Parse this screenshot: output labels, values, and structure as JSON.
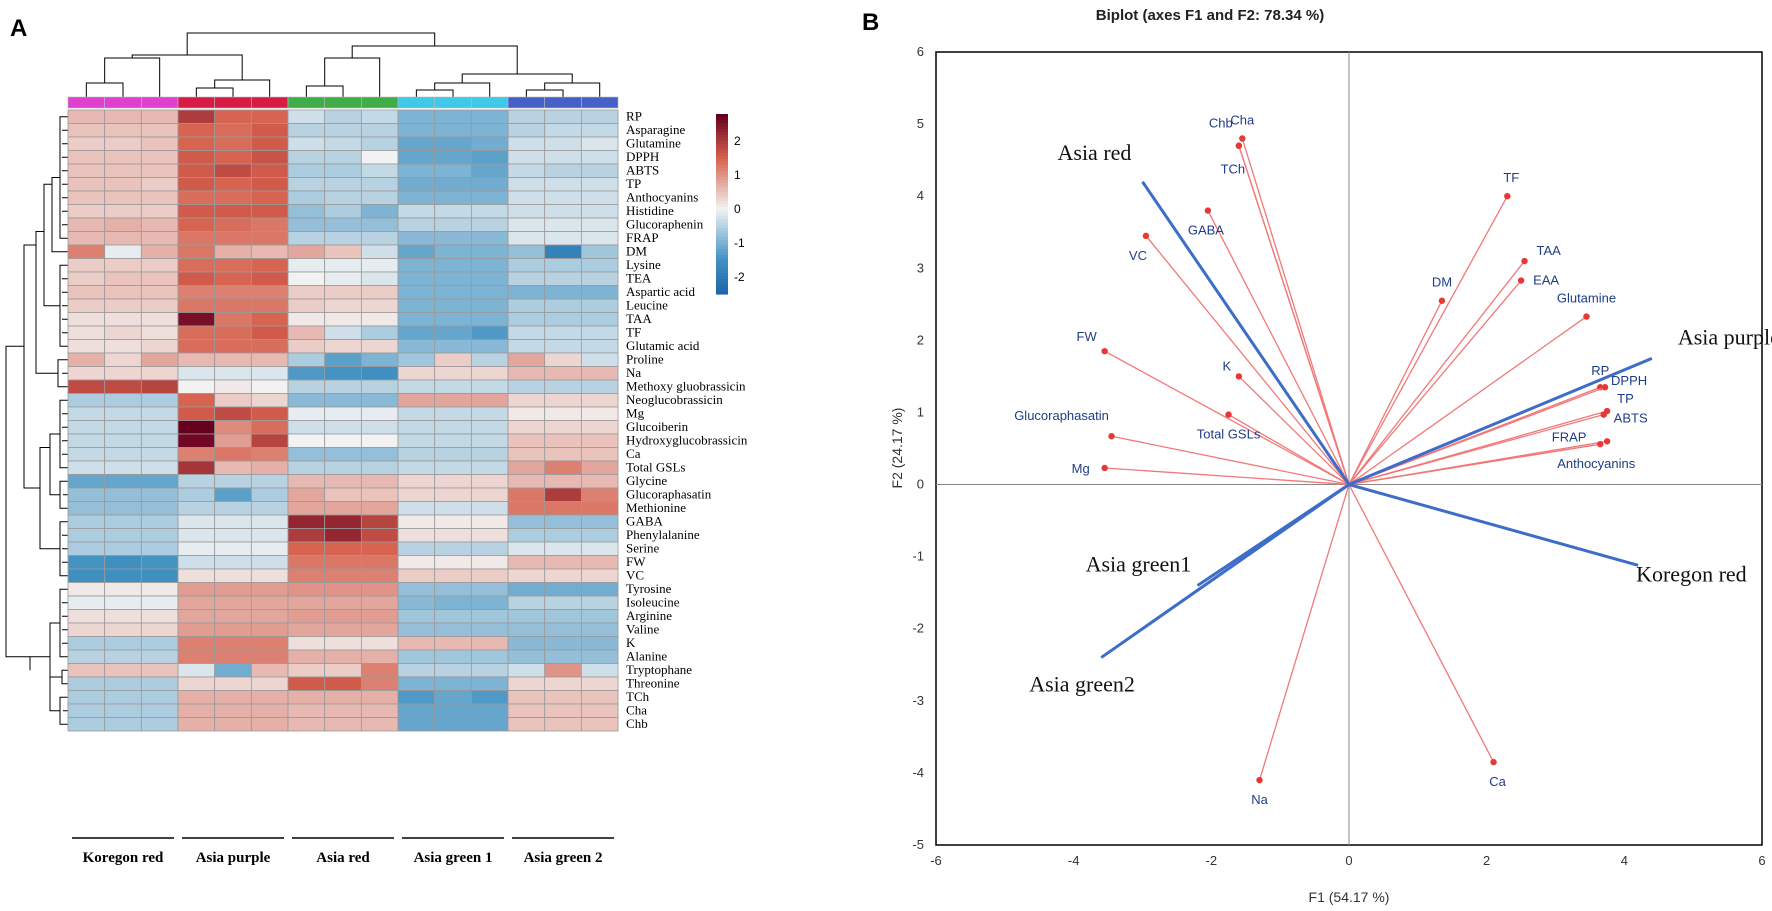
{
  "panelA": {
    "letter": "A",
    "rows": [
      "RP",
      "Asparagine",
      "Glutamine",
      "DPPH",
      "ABTS",
      "TP",
      "Anthocyanins",
      "Histidine",
      "Glucoraphenin",
      "FRAP",
      "DM",
      "Lysine",
      "TEA",
      "Aspartic acid",
      "Leucine",
      "TAA",
      "TF",
      "Glutamic acid",
      "Proline",
      "Na",
      "Methoxy gluobrassicin",
      "Neoglucobrassicin",
      "Mg",
      "Glucoiberin",
      "Hydroxyglucobrassicin",
      "Ca",
      "Total GSLs",
      "Glycine",
      "Glucoraphasatin",
      "Methionine",
      "GABA",
      "Phenylalanine",
      "Serine",
      "FW",
      "VC",
      "Tyrosine",
      "Isoleucine",
      "Arginine",
      "Valine",
      "K",
      "Alanine",
      "Tryptophane",
      "Threonine",
      "TCh",
      "Cha",
      "Chb"
    ],
    "groups": [
      "Koregon red",
      "Asia purple",
      "Asia red",
      "Asia green 1",
      "Asia green 2"
    ],
    "group_colors": [
      "#e040d0",
      "#d81b46",
      "#3fae49",
      "#3fc8e8",
      "#4560c8"
    ],
    "colorbar": {
      "ticks": [
        "2",
        "1",
        "0",
        "-1",
        "-2"
      ],
      "low": "#2166ac",
      "mid": "#f2f2f2",
      "high": "#67001f"
    },
    "values": [
      [
        0.6,
        0.6,
        0.6,
        2.0,
        1.5,
        1.5,
        -0.3,
        -0.5,
        -0.4,
        -1.0,
        -1.0,
        -1.0,
        -0.5,
        -0.5,
        -0.5
      ],
      [
        0.5,
        0.5,
        0.5,
        1.5,
        1.4,
        1.6,
        -0.5,
        -0.5,
        -0.5,
        -1.0,
        -1.0,
        -1.0,
        -0.5,
        -0.4,
        -0.4
      ],
      [
        0.4,
        0.4,
        0.5,
        1.5,
        1.4,
        1.6,
        -0.3,
        -0.4,
        -0.5,
        -1.2,
        -1.2,
        -1.1,
        -0.3,
        -0.3,
        -0.2
      ],
      [
        0.5,
        0.5,
        0.5,
        1.6,
        1.5,
        1.7,
        -0.5,
        -0.5,
        0.0,
        -1.2,
        -1.2,
        -1.3,
        -0.3,
        -0.3,
        -0.3
      ],
      [
        0.5,
        0.5,
        0.5,
        1.6,
        1.8,
        1.6,
        -0.6,
        -0.6,
        -0.4,
        -1.0,
        -1.0,
        -1.2,
        -0.4,
        -0.5,
        -0.5
      ],
      [
        0.5,
        0.5,
        0.4,
        1.6,
        1.5,
        1.6,
        -0.5,
        -0.5,
        -0.5,
        -1.1,
        -1.1,
        -1.1,
        -0.3,
        -0.3,
        -0.3
      ],
      [
        0.5,
        0.5,
        0.5,
        1.4,
        1.4,
        1.5,
        -0.6,
        -0.5,
        -0.5,
        -1.0,
        -1.0,
        -1.0,
        -0.3,
        -0.3,
        -0.3
      ],
      [
        0.4,
        0.4,
        0.4,
        1.6,
        1.6,
        1.6,
        -0.8,
        -0.6,
        -1.0,
        -0.4,
        -0.4,
        -0.4,
        -0.3,
        -0.3,
        -0.3
      ],
      [
        0.6,
        0.7,
        0.6,
        1.5,
        1.4,
        1.3,
        -0.8,
        -0.8,
        -0.8,
        -0.5,
        -0.5,
        -0.5,
        -0.2,
        -0.2,
        -0.2
      ],
      [
        0.6,
        0.6,
        0.6,
        1.3,
        1.3,
        1.3,
        -0.5,
        -0.5,
        -0.5,
        -0.9,
        -0.9,
        -0.9,
        -0.2,
        -0.2,
        -0.2
      ],
      [
        1.2,
        -0.1,
        0.7,
        1.3,
        0.7,
        0.6,
        0.8,
        0.5,
        -0.3,
        -1.2,
        -1.0,
        -1.0,
        -0.8,
        -1.9,
        -0.7
      ],
      [
        0.4,
        0.4,
        0.4,
        1.4,
        1.4,
        1.5,
        -0.1,
        -0.1,
        -0.1,
        -1.0,
        -1.0,
        -1.0,
        -0.6,
        -0.6,
        -0.6
      ],
      [
        0.4,
        0.5,
        0.5,
        1.6,
        1.5,
        1.6,
        0.0,
        -0.1,
        -0.2,
        -1.0,
        -1.0,
        -1.0,
        -0.5,
        -0.5,
        -0.5
      ],
      [
        0.5,
        0.5,
        0.5,
        1.2,
        1.2,
        1.2,
        0.4,
        0.4,
        0.4,
        -1.0,
        -1.0,
        -1.0,
        -1.0,
        -1.0,
        -1.0
      ],
      [
        0.4,
        0.4,
        0.4,
        1.3,
        1.3,
        1.3,
        0.4,
        0.3,
        0.3,
        -1.0,
        -1.0,
        -1.0,
        -0.6,
        -0.6,
        -0.6
      ],
      [
        0.2,
        0.2,
        0.2,
        2.6,
        1.3,
        1.5,
        0.1,
        0.1,
        0.1,
        -1.0,
        -1.0,
        -1.0,
        -0.6,
        -0.6,
        -0.6
      ],
      [
        0.2,
        0.3,
        0.2,
        1.4,
        1.4,
        1.6,
        0.6,
        -0.3,
        -0.6,
        -1.2,
        -1.2,
        -1.4,
        -0.4,
        -0.4,
        -0.4
      ],
      [
        0.2,
        0.2,
        0.3,
        1.4,
        1.4,
        1.4,
        0.4,
        0.3,
        0.3,
        -0.9,
        -0.9,
        -0.9,
        -0.4,
        -0.4,
        -0.4
      ],
      [
        0.7,
        0.3,
        0.8,
        0.6,
        0.6,
        0.6,
        -0.6,
        -1.3,
        -1.0,
        -0.7,
        0.4,
        -0.5,
        0.8,
        0.3,
        -0.3
      ],
      [
        0.3,
        0.3,
        0.3,
        -0.2,
        -0.2,
        -0.2,
        -1.4,
        -1.5,
        -1.6,
        0.3,
        0.3,
        0.3,
        0.6,
        0.6,
        0.6
      ],
      [
        1.8,
        1.8,
        1.9,
        0.0,
        0.1,
        0.0,
        -0.5,
        -0.5,
        -0.5,
        -0.4,
        -0.4,
        -0.4,
        -0.5,
        -0.5,
        -0.5
      ],
      [
        -0.6,
        -0.6,
        -0.6,
        1.5,
        0.4,
        0.3,
        -0.9,
        -0.9,
        -0.9,
        0.8,
        0.8,
        0.8,
        0.3,
        0.3,
        0.3
      ],
      [
        -0.4,
        -0.4,
        -0.4,
        1.6,
        1.8,
        1.6,
        -0.1,
        -0.1,
        -0.1,
        -0.4,
        -0.4,
        -0.4,
        0.1,
        0.1,
        0.1
      ],
      [
        -0.4,
        -0.4,
        -0.4,
        2.9,
        1.1,
        1.4,
        -0.3,
        -0.3,
        -0.3,
        -0.4,
        -0.4,
        -0.4,
        0.3,
        0.3,
        0.3
      ],
      [
        -0.4,
        -0.4,
        -0.4,
        2.7,
        0.9,
        1.9,
        0.0,
        0.0,
        0.0,
        -0.4,
        -0.4,
        -0.4,
        0.5,
        0.5,
        0.5
      ],
      [
        -0.4,
        -0.4,
        -0.4,
        1.2,
        1.3,
        1.2,
        -0.8,
        -0.8,
        -0.8,
        -0.5,
        -0.5,
        -0.5,
        0.5,
        0.5,
        0.5
      ],
      [
        -0.3,
        -0.3,
        -0.3,
        2.1,
        0.6,
        0.7,
        -0.5,
        -0.5,
        -0.5,
        -0.4,
        -0.4,
        -0.4,
        0.8,
        1.2,
        0.8
      ],
      [
        -1.2,
        -1.2,
        -1.2,
        -0.5,
        -0.5,
        -0.5,
        0.6,
        0.6,
        0.6,
        0.3,
        0.3,
        0.3,
        0.6,
        0.6,
        0.6
      ],
      [
        -0.8,
        -0.8,
        -0.8,
        -0.6,
        -1.3,
        -0.6,
        0.8,
        0.5,
        0.5,
        0.3,
        0.3,
        0.3,
        1.3,
        2.0,
        1.2
      ],
      [
        -0.8,
        -0.8,
        -0.8,
        -0.5,
        -0.5,
        -0.5,
        0.8,
        0.8,
        0.8,
        -0.3,
        -0.3,
        -0.3,
        1.3,
        1.3,
        1.3
      ],
      [
        -0.6,
        -0.6,
        -0.6,
        -0.2,
        -0.2,
        -0.2,
        2.3,
        2.3,
        1.9,
        0.1,
        0.1,
        0.1,
        -0.8,
        -0.8,
        -0.8
      ],
      [
        -0.6,
        -0.6,
        -0.6,
        -0.2,
        -0.2,
        -0.2,
        2.0,
        2.3,
        1.8,
        0.2,
        0.2,
        0.2,
        -0.6,
        -0.6,
        -0.6
      ],
      [
        -0.6,
        -0.6,
        -0.6,
        -0.1,
        -0.1,
        -0.1,
        1.5,
        1.5,
        1.5,
        -0.5,
        -0.5,
        -0.5,
        -0.2,
        -0.2,
        -0.2
      ],
      [
        -1.5,
        -1.6,
        -1.5,
        -0.3,
        -0.3,
        -0.3,
        1.3,
        1.3,
        1.3,
        0.1,
        0.1,
        0.1,
        0.6,
        0.6,
        0.6
      ],
      [
        -1.6,
        -1.6,
        -1.6,
        0.2,
        0.2,
        0.2,
        1.2,
        1.2,
        1.2,
        0.4,
        0.4,
        0.4,
        0.3,
        0.3,
        0.3
      ],
      [
        0.1,
        0.1,
        0.1,
        0.9,
        0.9,
        0.9,
        1.0,
        1.0,
        1.0,
        -0.8,
        -0.8,
        -0.8,
        -1.1,
        -1.1,
        -1.1
      ],
      [
        -0.1,
        -0.1,
        -0.1,
        0.8,
        0.8,
        0.8,
        0.8,
        0.8,
        0.8,
        -0.9,
        -1.0,
        -1.0,
        -0.5,
        -0.5,
        -0.5
      ],
      [
        0.2,
        0.2,
        0.2,
        0.8,
        0.8,
        0.8,
        0.9,
        0.9,
        0.9,
        -0.7,
        -0.7,
        -0.7,
        -0.7,
        -0.7,
        -0.7
      ],
      [
        0.3,
        0.3,
        0.3,
        0.9,
        0.9,
        0.9,
        0.8,
        0.8,
        0.8,
        -0.8,
        -0.8,
        -0.8,
        -0.8,
        -0.8,
        -0.8
      ],
      [
        -0.6,
        -0.6,
        -0.6,
        1.2,
        1.2,
        1.2,
        0.2,
        0.2,
        0.2,
        0.6,
        0.6,
        0.6,
        -0.9,
        -0.9,
        -0.9
      ],
      [
        -0.5,
        -0.5,
        -0.5,
        1.2,
        1.2,
        1.2,
        0.7,
        0.7,
        0.7,
        -0.7,
        -0.7,
        -0.7,
        -0.8,
        -0.8,
        -0.8
      ],
      [
        0.5,
        0.5,
        0.5,
        -0.2,
        -1.1,
        0.6,
        0.4,
        0.4,
        1.2,
        -0.5,
        -0.5,
        -0.5,
        -0.3,
        1.0,
        -0.3
      ],
      [
        -0.6,
        -0.6,
        -0.6,
        0.3,
        0.3,
        0.3,
        1.6,
        1.6,
        1.2,
        -1.0,
        -1.0,
        -1.0,
        0.3,
        0.3,
        0.3
      ],
      [
        -0.6,
        -0.6,
        -0.6,
        0.7,
        0.7,
        0.7,
        0.7,
        0.7,
        0.7,
        -1.4,
        -1.2,
        -1.4,
        0.5,
        0.5,
        0.5
      ],
      [
        -0.6,
        -0.6,
        -0.6,
        0.7,
        0.7,
        0.7,
        0.6,
        0.6,
        0.6,
        -1.2,
        -1.2,
        -1.2,
        0.5,
        0.5,
        0.5
      ],
      [
        -0.6,
        -0.6,
        -0.6,
        0.7,
        0.7,
        0.7,
        0.6,
        0.6,
        0.6,
        -1.2,
        -1.2,
        -1.2,
        0.5,
        0.5,
        0.5
      ]
    ]
  },
  "panelB": {
    "letter": "B",
    "title": "Biplot (axes F1 and F2: 78.34 %)",
    "xlabel": "F1 (54.17 %)",
    "ylabel": "F2 (24.17 %)"
  },
  "chart_data": [
    {
      "type": "heatmap",
      "title": "",
      "row_labels_ref": "panelA.rows",
      "column_groups_ref": "panelA.groups",
      "replicates_per_group": 3,
      "color_scale_range": [
        -2.5,
        2.8
      ],
      "values_ref": "panelA.values"
    },
    {
      "type": "scatter",
      "title": "Biplot (axes F1 and F2: 78.34 %)",
      "xlabel": "F1 (54.17 %)",
      "ylabel": "F2 (24.17 %)",
      "xlim": [
        -6,
        6
      ],
      "ylim": [
        -5,
        6
      ],
      "xticks": [
        "-6",
        "-4",
        "-2",
        "0",
        "2",
        "4",
        "6"
      ],
      "yticks": [
        "-5",
        "-4",
        "-3",
        "-2",
        "-1",
        "0",
        "1",
        "2",
        "3",
        "4",
        "5",
        "6"
      ],
      "variables": [
        {
          "name": "Cha",
          "x": -1.55,
          "y": 4.8
        },
        {
          "name": "Chb",
          "x": -1.6,
          "y": 4.7
        },
        {
          "name": "TCh",
          "x": -1.6,
          "y": 4.7
        },
        {
          "name": "GABA",
          "x": -2.05,
          "y": 3.8
        },
        {
          "name": "VC",
          "x": -2.95,
          "y": 3.45
        },
        {
          "name": "FW",
          "x": -3.55,
          "y": 1.85
        },
        {
          "name": "K",
          "x": -1.6,
          "y": 1.5
        },
        {
          "name": "Total GSLs",
          "x": -1.75,
          "y": 0.97
        },
        {
          "name": "Glucoraphasatin",
          "x": -3.45,
          "y": 0.67
        },
        {
          "name": "Mg",
          "x": -3.55,
          "y": 0.23
        },
        {
          "name": "TF",
          "x": 2.3,
          "y": 4.0
        },
        {
          "name": "TAA",
          "x": 2.55,
          "y": 3.1
        },
        {
          "name": "EAA",
          "x": 2.5,
          "y": 2.83
        },
        {
          "name": "DM",
          "x": 1.35,
          "y": 2.55
        },
        {
          "name": "Glutamine",
          "x": 3.45,
          "y": 2.33
        },
        {
          "name": "RP",
          "x": 3.65,
          "y": 1.35
        },
        {
          "name": "DPPH",
          "x": 3.72,
          "y": 1.35
        },
        {
          "name": "TP",
          "x": 3.75,
          "y": 1.02
        },
        {
          "name": "ABTS",
          "x": 3.7,
          "y": 0.97
        },
        {
          "name": "FRAP",
          "x": 3.75,
          "y": 0.6
        },
        {
          "name": "Anthocyanins",
          "x": 3.65,
          "y": 0.56
        },
        {
          "name": "Na",
          "x": -1.3,
          "y": -4.1
        },
        {
          "name": "Ca",
          "x": 2.1,
          "y": -3.85
        }
      ],
      "observations": [
        {
          "name": "Asia red",
          "x": -3.0,
          "y": 4.2
        },
        {
          "name": "Asia purple",
          "x": 4.4,
          "y": 1.75
        },
        {
          "name": "Koregon red",
          "x": 4.2,
          "y": -1.12
        },
        {
          "name": "Asia green1",
          "x": -2.2,
          "y": -1.4
        },
        {
          "name": "Asia green2",
          "x": -3.6,
          "y": -2.4
        }
      ]
    }
  ]
}
